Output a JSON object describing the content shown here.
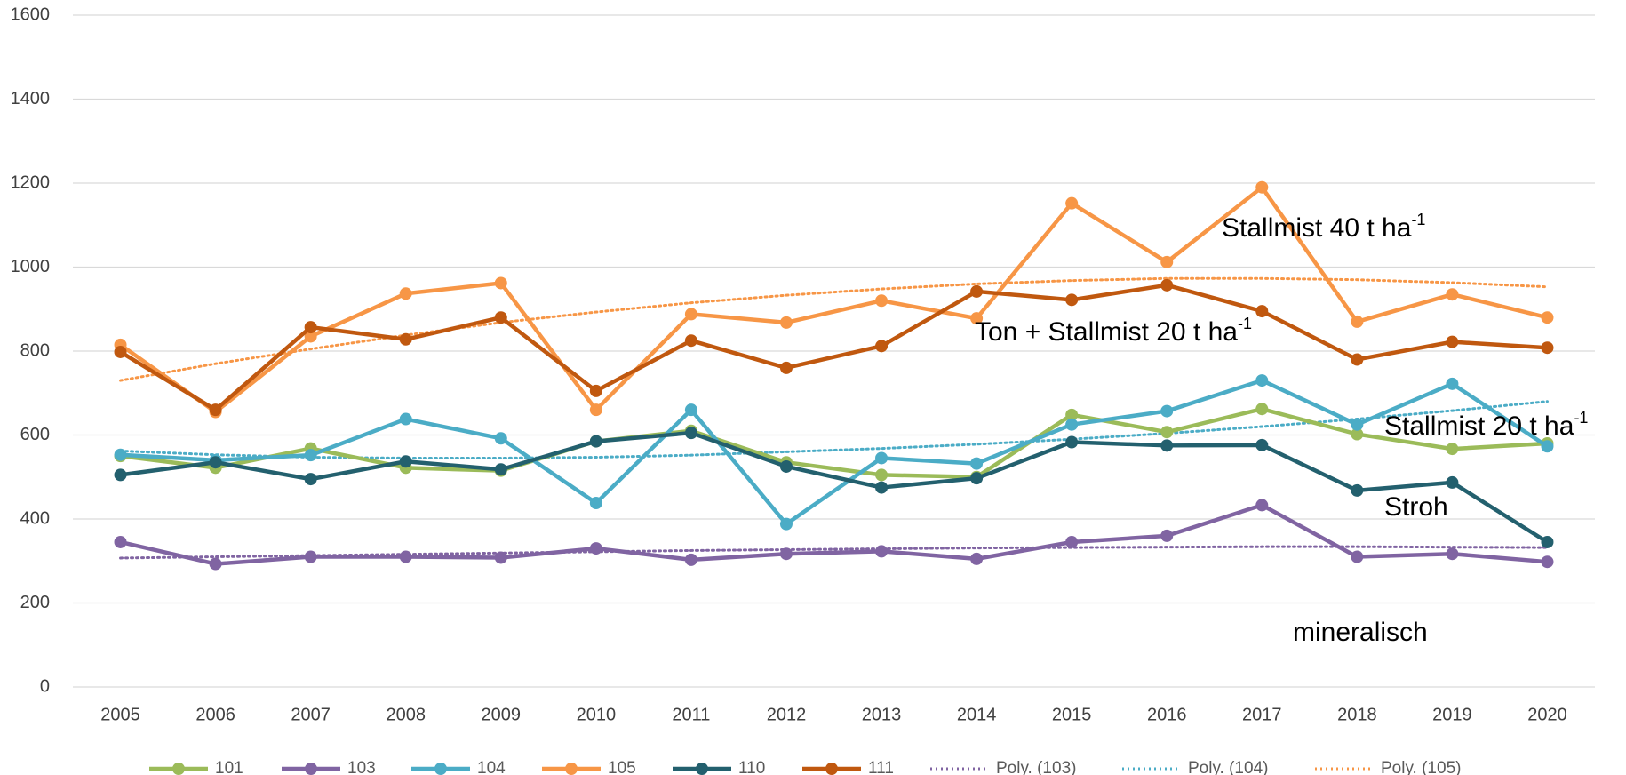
{
  "chart_data": {
    "type": "line",
    "categories": [
      "2005",
      "2006",
      "2007",
      "2008",
      "2009",
      "2010",
      "2011",
      "2012",
      "2013",
      "2014",
      "2015",
      "2016",
      "2017",
      "2018",
      "2019",
      "2020"
    ],
    "ylim": [
      0,
      1600
    ],
    "yticks": [
      0,
      200,
      400,
      600,
      800,
      1000,
      1200,
      1400,
      1600
    ],
    "grid": true,
    "series": [
      {
        "name": "101",
        "color": "#9bbb59",
        "values": [
          550,
          522,
          568,
          522,
          515,
          585,
          610,
          535,
          505,
          500,
          648,
          607,
          662,
          602,
          567,
          580
        ]
      },
      {
        "name": "103",
        "color": "#8064a2",
        "values": [
          345,
          293,
          310,
          310,
          308,
          330,
          303,
          317,
          323,
          305,
          345,
          360,
          433,
          310,
          317,
          298
        ]
      },
      {
        "name": "104",
        "color": "#4bacc6",
        "values": [
          553,
          540,
          552,
          638,
          592,
          438,
          660,
          388,
          545,
          532,
          625,
          657,
          730,
          625,
          722,
          573
        ]
      },
      {
        "name": "105",
        "color": "#f79646",
        "values": [
          815,
          655,
          835,
          937,
          962,
          660,
          888,
          868,
          920,
          878,
          1152,
          1012,
          1190,
          870,
          935,
          880
        ]
      },
      {
        "name": "110",
        "color": "#23606e",
        "values": [
          505,
          535,
          495,
          537,
          518,
          585,
          605,
          525,
          475,
          497,
          583,
          575,
          576,
          468,
          487,
          345
        ]
      },
      {
        "name": "111",
        "color": "#c0580f",
        "values": [
          798,
          660,
          857,
          828,
          880,
          705,
          825,
          760,
          812,
          942,
          922,
          957,
          895,
          780,
          822,
          808
        ]
      },
      {
        "name": "Poly. (103)",
        "color": "#8064a2",
        "dotted": true,
        "values": [
          307,
          310,
          313,
          316,
          319,
          322,
          325,
          327,
          329,
          331,
          332,
          333,
          334,
          334,
          333,
          332
        ]
      },
      {
        "name": "Poly. (104)",
        "color": "#4bacc6",
        "dotted": true,
        "values": [
          562,
          553,
          547,
          545,
          545,
          547,
          552,
          560,
          568,
          578,
          590,
          604,
          620,
          638,
          658,
          680
        ]
      },
      {
        "name": "Poly. (105)",
        "color": "#f79646",
        "dotted": true,
        "values": [
          730,
          770,
          805,
          838,
          868,
          893,
          915,
          933,
          948,
          960,
          968,
          973,
          973,
          970,
          963,
          953
        ]
      }
    ],
    "annotations": [
      {
        "text": "Stallmist 40 t ha",
        "sup": "-1"
      },
      {
        "text": "Ton + Stallmist 20 t ha",
        "sup": "-1"
      },
      {
        "text": "Stallmist 20 t ha",
        "sup": "-1"
      },
      {
        "text": "Stroh"
      },
      {
        "text": "mineralisch"
      }
    ]
  }
}
